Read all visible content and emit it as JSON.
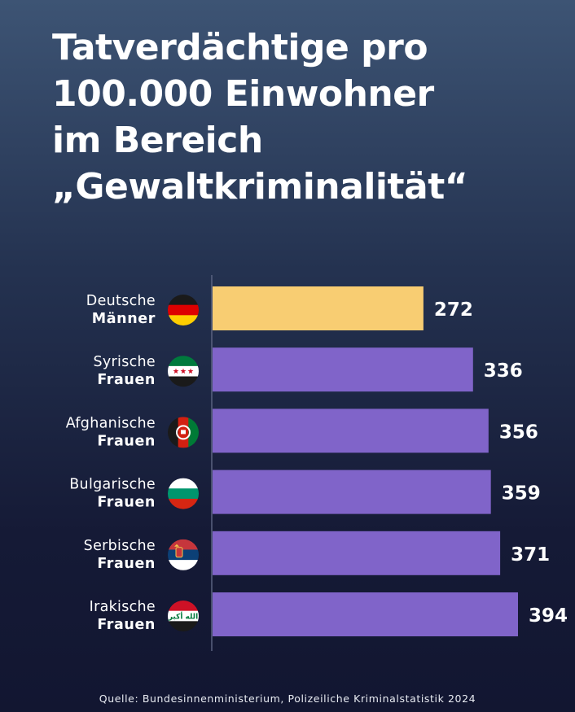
{
  "title_lines": [
    "Tatverdächtige pro",
    "100.000 Einwohner",
    "im Bereich",
    "„Gewaltkriminalität“"
  ],
  "source": "Quelle: Bundesinnenministerium, Polizeiliche Kriminalstatistik 2024",
  "colors": {
    "highlight": "#f8cd72",
    "bar": "#8064c9",
    "axis": "#5a6280"
  },
  "chart_data": {
    "type": "bar",
    "orientation": "horizontal",
    "title": "Tatverdächtige pro 100.000 Einwohner im Bereich „Gewaltkriminalität“",
    "categories": [
      {
        "line1": "Deutsche",
        "line2": "Männer",
        "flag": "germany-flag-icon"
      },
      {
        "line1": "Syrische",
        "line2": "Frauen",
        "flag": "syria-flag-icon"
      },
      {
        "line1": "Afghanische",
        "line2": "Frauen",
        "flag": "afghanistan-flag-icon"
      },
      {
        "line1": "Bulgarische",
        "line2": "Frauen",
        "flag": "bulgaria-flag-icon"
      },
      {
        "line1": "Serbische",
        "line2": "Frauen",
        "flag": "serbia-flag-icon"
      },
      {
        "line1": "Irakische",
        "line2": "Frauen",
        "flag": "iraq-flag-icon"
      }
    ],
    "values": [
      272,
      336,
      356,
      359,
      371,
      394
    ],
    "highlight_index": 0,
    "data_labels": true,
    "grid": false,
    "legend": "none"
  }
}
